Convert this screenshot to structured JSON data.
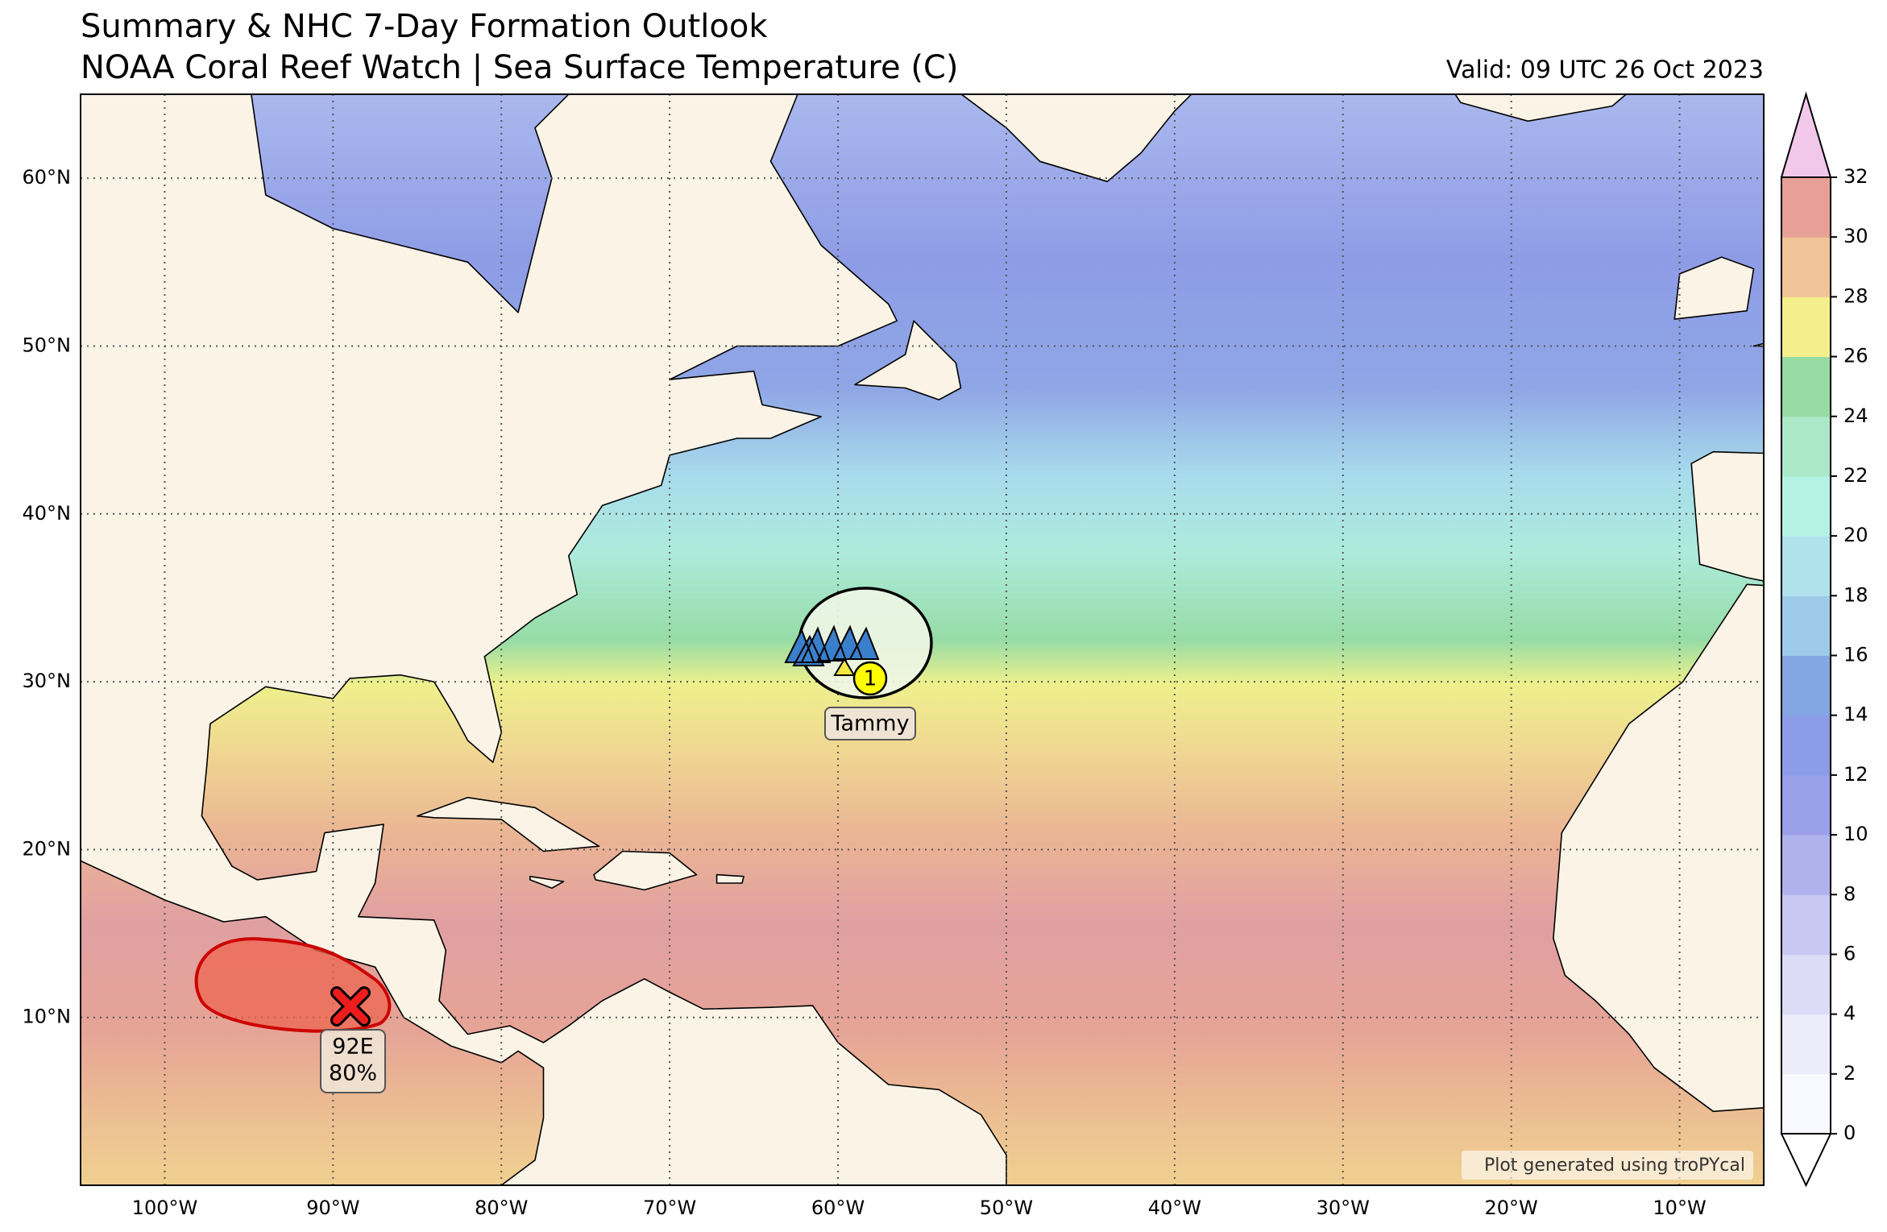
{
  "title": "Summary & NHC 7-Day Formation Outlook",
  "subtitle": "NOAA Coral Reef Watch | Sea Surface Temperature (C)",
  "valid": "Valid: 09 UTC 26 Oct 2023",
  "map": {
    "lon_range": [
      -105,
      -5
    ],
    "lat_range": [
      0,
      65
    ],
    "lon_ticks": [
      {
        "value": -100,
        "label": "100°W"
      },
      {
        "value": -90,
        "label": "90°W"
      },
      {
        "value": -80,
        "label": "80°W"
      },
      {
        "value": -70,
        "label": "70°W"
      },
      {
        "value": -60,
        "label": "60°W"
      },
      {
        "value": -50,
        "label": "50°W"
      },
      {
        "value": -40,
        "label": "40°W"
      },
      {
        "value": -30,
        "label": "30°W"
      },
      {
        "value": -20,
        "label": "20°W"
      },
      {
        "value": -10,
        "label": "10°W"
      }
    ],
    "lat_ticks": [
      {
        "value": 10,
        "label": "10°N"
      },
      {
        "value": 20,
        "label": "20°N"
      },
      {
        "value": 30,
        "label": "30°N"
      },
      {
        "value": 40,
        "label": "40°N"
      },
      {
        "value": 50,
        "label": "50°N"
      },
      {
        "value": 60,
        "label": "60°N"
      }
    ],
    "gridlines": true
  },
  "colorbar": {
    "range": [
      0,
      32
    ],
    "ticks": [
      0,
      2,
      4,
      6,
      8,
      10,
      12,
      14,
      16,
      18,
      20,
      22,
      24,
      26,
      28,
      30,
      32
    ],
    "colors": [
      "#f8f8ff",
      "#ececfa",
      "#dcdcf6",
      "#c8c8f2",
      "#b0b2ee",
      "#9aa0ea",
      "#8c9ce6",
      "#84a6e2",
      "#9ccae8",
      "#b0e2ec",
      "#b4f2e6",
      "#aae8c8",
      "#96dca2",
      "#f4ee8c",
      "#f0c496",
      "#e8a096"
    ],
    "over_color": "#f2c8ea",
    "under_color": "#ffffff"
  },
  "systems": {
    "tammy": {
      "name": "Tammy",
      "forecast_label": "1"
    },
    "invest": {
      "name": "92E",
      "chance": "80%"
    }
  },
  "credit": "Plot generated using troPYcal"
}
